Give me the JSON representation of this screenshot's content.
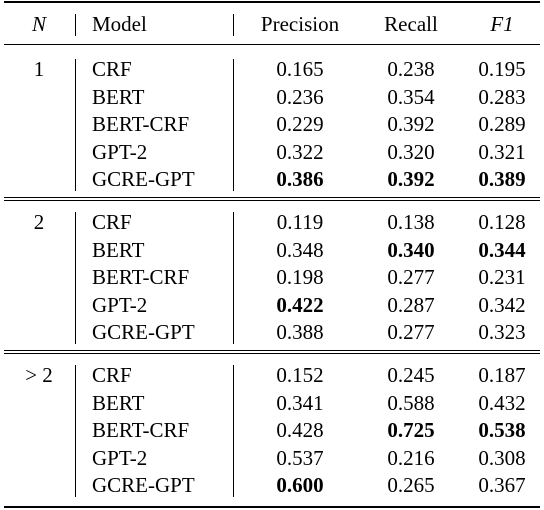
{
  "header": {
    "n": "N",
    "model": "Model",
    "precision": "Precision",
    "recall": "Recall",
    "f1": "F1"
  },
  "groups": [
    {
      "n": "1",
      "rows": [
        {
          "model": "CRF",
          "precision": "0.165",
          "recall": "0.238",
          "f1": "0.195",
          "bold": []
        },
        {
          "model": "BERT",
          "precision": "0.236",
          "recall": "0.354",
          "f1": "0.283",
          "bold": []
        },
        {
          "model": "BERT-CRF",
          "precision": "0.229",
          "recall": "0.392",
          "f1": "0.289",
          "bold": []
        },
        {
          "model": "GPT-2",
          "precision": "0.322",
          "recall": "0.320",
          "f1": "0.321",
          "bold": []
        },
        {
          "model": "GCRE-GPT",
          "precision": "0.386",
          "recall": "0.392",
          "f1": "0.389",
          "bold": [
            "precision",
            "recall",
            "f1"
          ]
        }
      ]
    },
    {
      "n": "2",
      "rows": [
        {
          "model": "CRF",
          "precision": "0.119",
          "recall": "0.138",
          "f1": "0.128",
          "bold": []
        },
        {
          "model": "BERT",
          "precision": "0.348",
          "recall": "0.340",
          "f1": "0.344",
          "bold": [
            "recall",
            "f1"
          ]
        },
        {
          "model": "BERT-CRF",
          "precision": "0.198",
          "recall": "0.277",
          "f1": "0.231",
          "bold": []
        },
        {
          "model": "GPT-2",
          "precision": "0.422",
          "recall": "0.287",
          "f1": "0.342",
          "bold": [
            "precision"
          ]
        },
        {
          "model": "GCRE-GPT",
          "precision": "0.388",
          "recall": "0.277",
          "f1": "0.323",
          "bold": []
        }
      ]
    },
    {
      "n": "> 2",
      "rows": [
        {
          "model": "CRF",
          "precision": "0.152",
          "recall": "0.245",
          "f1": "0.187",
          "bold": []
        },
        {
          "model": "BERT",
          "precision": "0.341",
          "recall": "0.588",
          "f1": "0.432",
          "bold": []
        },
        {
          "model": "BERT-CRF",
          "precision": "0.428",
          "recall": "0.725",
          "f1": "0.538",
          "bold": [
            "recall",
            "f1"
          ]
        },
        {
          "model": "GPT-2",
          "precision": "0.537",
          "recall": "0.216",
          "f1": "0.308",
          "bold": []
        },
        {
          "model": "GCRE-GPT",
          "precision": "0.600",
          "recall": "0.265",
          "f1": "0.367",
          "bold": [
            "precision"
          ]
        }
      ]
    }
  ]
}
